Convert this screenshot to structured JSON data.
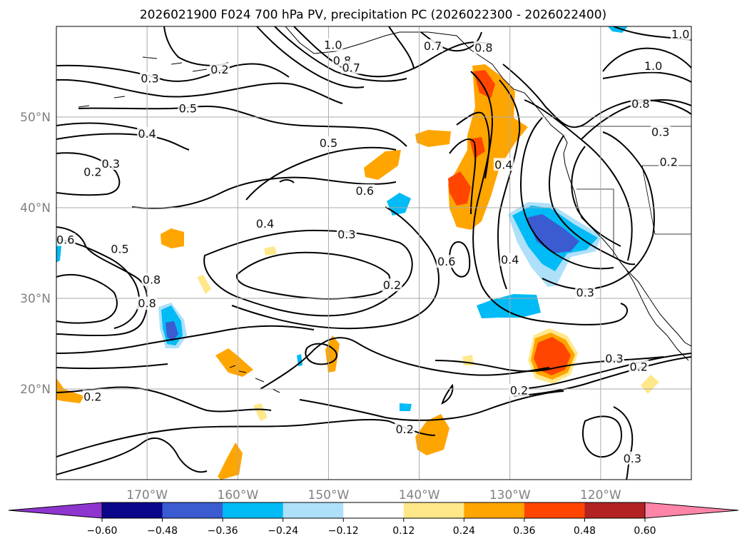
{
  "chart_data": {
    "type": "contour-map",
    "title": "2026021900 F024 700 hPa PV, precipitation PC (2026022300 - 2026022400)",
    "lon_range": [
      -180,
      -110
    ],
    "lat_range": [
      10,
      60
    ],
    "lon_ticks": [
      {
        "lon": -170,
        "label": "170°W"
      },
      {
        "lon": -160,
        "label": "160°W"
      },
      {
        "lon": -150,
        "label": "150°W"
      },
      {
        "lon": -140,
        "label": "140°W"
      },
      {
        "lon": -130,
        "label": "130°W"
      },
      {
        "lon": -120,
        "label": "120°W"
      }
    ],
    "lat_ticks": [
      {
        "lat": 20,
        "label": "20°N"
      },
      {
        "lat": 30,
        "label": "30°N"
      },
      {
        "lat": 40,
        "label": "40°N"
      },
      {
        "lat": 50,
        "label": "50°N"
      }
    ],
    "grid": true,
    "pv_contour_labels": [
      {
        "lon": -169.7,
        "lat": 54.2,
        "text": "0.3"
      },
      {
        "lon": -162.0,
        "lat": 55.2,
        "text": "0.2"
      },
      {
        "lon": -165.5,
        "lat": 50.9,
        "text": "0.5"
      },
      {
        "lon": -170.0,
        "lat": 48.1,
        "text": "0.4"
      },
      {
        "lon": -176.0,
        "lat": 43.9,
        "text": "0.2"
      },
      {
        "lon": -174.0,
        "lat": 44.8,
        "text": "0.3"
      },
      {
        "lon": -179.0,
        "lat": 36.4,
        "text": "0.6"
      },
      {
        "lon": -173.0,
        "lat": 35.4,
        "text": "0.5"
      },
      {
        "lon": -169.5,
        "lat": 32.0,
        "text": "0.8"
      },
      {
        "lon": -170.0,
        "lat": 29.4,
        "text": "0.8"
      },
      {
        "lon": -176.0,
        "lat": 19.1,
        "text": "0.2"
      },
      {
        "lon": -157.0,
        "lat": 38.2,
        "text": "0.4"
      },
      {
        "lon": -148.0,
        "lat": 37.0,
        "text": "0.3"
      },
      {
        "lon": -150.0,
        "lat": 47.1,
        "text": "0.5"
      },
      {
        "lon": -146.0,
        "lat": 41.8,
        "text": "0.6"
      },
      {
        "lon": -143.0,
        "lat": 31.4,
        "text": "0.2"
      },
      {
        "lon": -149.5,
        "lat": 57.9,
        "text": "1.0"
      },
      {
        "lon": -148.5,
        "lat": 56.2,
        "text": "0.8"
      },
      {
        "lon": -147.5,
        "lat": 55.4,
        "text": "0.7"
      },
      {
        "lon": -138.5,
        "lat": 57.8,
        "text": "0.7"
      },
      {
        "lon": -132.9,
        "lat": 57.6,
        "text": "0.8"
      },
      {
        "lon": -137.0,
        "lat": 34.0,
        "text": "0.6"
      },
      {
        "lon": -130.7,
        "lat": 44.7,
        "text": "0.4"
      },
      {
        "lon": -130.0,
        "lat": 34.2,
        "text": "0.4"
      },
      {
        "lon": -121.7,
        "lat": 30.6,
        "text": "0.3"
      },
      {
        "lon": -118.5,
        "lat": 23.3,
        "text": "0.3"
      },
      {
        "lon": -115.8,
        "lat": 22.4,
        "text": "0.2"
      },
      {
        "lon": -129.0,
        "lat": 19.8,
        "text": "0.2"
      },
      {
        "lon": -141.6,
        "lat": 15.5,
        "text": "0.2"
      },
      {
        "lon": -116.5,
        "lat": 12.3,
        "text": "0.3"
      },
      {
        "lon": -111.2,
        "lat": 59.1,
        "text": "1.0"
      },
      {
        "lon": -114.2,
        "lat": 55.6,
        "text": "1.0"
      },
      {
        "lon": -115.6,
        "lat": 51.4,
        "text": "0.8"
      },
      {
        "lon": -113.4,
        "lat": 48.3,
        "text": "0.3"
      },
      {
        "lon": -112.5,
        "lat": 45.0,
        "text": "0.2"
      }
    ],
    "pc_anomaly_regions": [
      {
        "lon": -126,
        "lat": 24.5,
        "level": 0.48,
        "note": "strong positive near 24N"
      },
      {
        "lon": -136,
        "lat": 42,
        "level": 0.36,
        "note": "positive band off Pacific NW"
      },
      {
        "lon": -126,
        "lat": 37.5,
        "level": -0.48,
        "note": "negative off California"
      },
      {
        "lon": -167,
        "lat": 26.5,
        "level": -0.36,
        "note": "negative near 167W"
      },
      {
        "lon": -160,
        "lat": 23,
        "level": 0.36,
        "note": "positive near 160W"
      },
      {
        "lon": -138,
        "lat": 16,
        "level": 0.24,
        "note": "positive near 138W"
      }
    ],
    "colorbar": {
      "levels": [
        -0.6,
        -0.48,
        -0.36,
        -0.24,
        -0.12,
        0.12,
        0.24,
        0.36,
        0.48,
        0.6
      ],
      "tick_labels": [
        "−0.60",
        "−0.48",
        "−0.36",
        "−0.24",
        "−0.12",
        "0.12",
        "0.24",
        "0.36",
        "0.48",
        "0.60"
      ],
      "colors": [
        "#8e35cf",
        "#0b068c",
        "#3b5bd1",
        "#00bbf5",
        "#aee0fa",
        "#ffffff",
        "#ffe88a",
        "#ffa500",
        "#ff4500",
        "#b22222",
        "#ff85a8"
      ],
      "extend": "both"
    }
  }
}
